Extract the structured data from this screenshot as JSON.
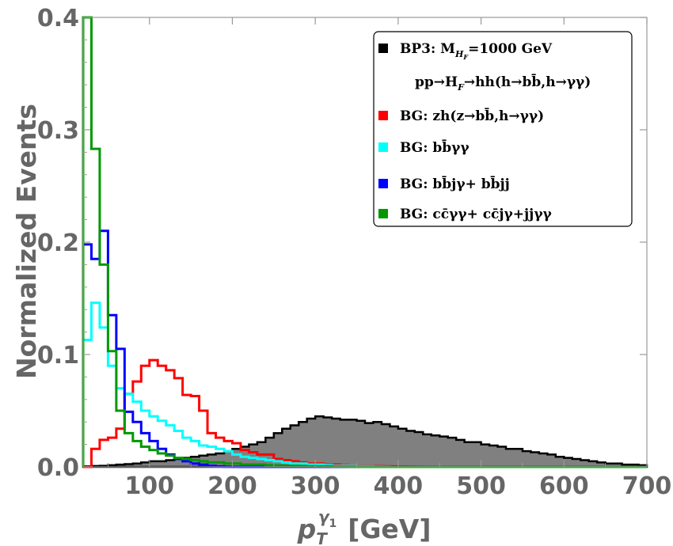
{
  "chart_data": {
    "type": "histogram",
    "ylabel": "Normalized Events",
    "xlabel": {
      "symbol": "p",
      "sub": "T",
      "sup": "γ",
      "sup_sub": "1",
      "unit": "[GeV]"
    },
    "xlim": [
      20,
      700
    ],
    "ylim": [
      0,
      0.4
    ],
    "bin_width": 10,
    "xticks": [
      "100",
      "200",
      "300",
      "400",
      "500",
      "600",
      "700"
    ],
    "xtick_values": [
      100,
      200,
      300,
      400,
      500,
      600,
      700
    ],
    "yticks": [
      "0.0",
      "0.1",
      "0.2",
      "0.3",
      "0.4"
    ],
    "ytick_values": [
      0,
      0.1,
      0.2,
      0.3,
      0.4
    ],
    "legend": {
      "position": "top-right",
      "entries": [
        {
          "key": "bp3",
          "line1": "BP3: M",
          "line1_sub": "H",
          "line1_subsub": "F",
          "line1_tail": "=1000 GeV",
          "line2": "pp→H",
          "line2_sub": "F",
          "line2_tail": "→hh(h→bb̄,h→γγ)"
        },
        {
          "key": "zh",
          "label": "BG: zh(z→bb̄,h→γγ)"
        },
        {
          "key": "bbyy",
          "label": "BG: bb̄γγ"
        },
        {
          "key": "bbjy",
          "label": "BG: bb̄jγ+ bb̄jj"
        },
        {
          "key": "ccyy",
          "label": "BG: cc̄γγ+ cc̄jγ+jjγγ"
        }
      ]
    },
    "series": [
      {
        "key": "bp3",
        "name": "BP3: M_HF=1000 GeV",
        "color": "#000000",
        "fill": "#808080",
        "filled": true,
        "x_start": 20,
        "values": [
          0.0005,
          0.0008,
          0.001,
          0.0015,
          0.002,
          0.0025,
          0.003,
          0.004,
          0.005,
          0.005,
          0.006,
          0.007,
          0.008,
          0.009,
          0.01,
          0.011,
          0.012,
          0.014,
          0.016,
          0.018,
          0.02,
          0.022,
          0.026,
          0.03,
          0.034,
          0.037,
          0.04,
          0.043,
          0.045,
          0.044,
          0.043,
          0.042,
          0.042,
          0.041,
          0.039,
          0.04,
          0.038,
          0.036,
          0.034,
          0.032,
          0.031,
          0.029,
          0.028,
          0.027,
          0.026,
          0.024,
          0.022,
          0.022,
          0.02,
          0.019,
          0.018,
          0.016,
          0.016,
          0.014,
          0.013,
          0.012,
          0.011,
          0.009,
          0.008,
          0.007,
          0.006,
          0.005,
          0.004,
          0.003,
          0.003,
          0.002,
          0.002,
          0.0015
        ]
      },
      {
        "key": "zh",
        "name": "BG: zh(z→bb̄,h→γγ)",
        "color": "#ff0000",
        "filled": false,
        "x_start": 20,
        "values": [
          0.0,
          0.016,
          0.024,
          0.026,
          0.034,
          0.065,
          0.076,
          0.09,
          0.095,
          0.09,
          0.086,
          0.079,
          0.064,
          0.063,
          0.05,
          0.03,
          0.026,
          0.023,
          0.021,
          0.015,
          0.013,
          0.011,
          0.011,
          0.007,
          0.006,
          0.005,
          0.004,
          0.003,
          0.003,
          0.002,
          0.002,
          0.0015,
          0.001,
          0.001,
          0.0008,
          0.0006,
          0.0005,
          0.0004,
          0.0003,
          0.0002,
          0.0001
        ]
      },
      {
        "key": "bbyy",
        "name": "BG: bb̄γγ",
        "color": "#00ffff",
        "filled": false,
        "x_start": 20,
        "values": [
          0.113,
          0.146,
          0.124,
          0.09,
          0.07,
          0.065,
          0.058,
          0.05,
          0.045,
          0.041,
          0.037,
          0.032,
          0.026,
          0.023,
          0.019,
          0.018,
          0.016,
          0.014,
          0.011,
          0.009,
          0.008,
          0.007,
          0.006,
          0.005,
          0.004,
          0.003,
          0.003,
          0.002,
          0.002,
          0.0015,
          0.001,
          0.001,
          0.0008,
          0.0006,
          0.0005,
          0.0003,
          0.0002
        ]
      },
      {
        "key": "bbjy",
        "name": "BG: bb̄jγ+ bb̄jj",
        "color": "#0000ff",
        "filled": false,
        "x_start": 20,
        "values": [
          0.198,
          0.185,
          0.21,
          0.135,
          0.105,
          0.049,
          0.04,
          0.03,
          0.023,
          0.016,
          0.011,
          0.007,
          0.005,
          0.003,
          0.002,
          0.001,
          0.0005,
          0.0002,
          0.0001
        ]
      },
      {
        "key": "ccyy",
        "name": "BG: cc̄γγ+ cc̄jγ+jjγγ",
        "color": "#009900",
        "filled": false,
        "x_start": 20,
        "values": [
          0.4,
          0.283,
          0.18,
          0.103,
          0.05,
          0.03,
          0.023,
          0.018,
          0.015,
          0.012,
          0.01,
          0.008,
          0.007,
          0.006,
          0.005,
          0.004,
          0.004,
          0.003,
          0.003,
          0.002,
          0.002,
          0.002,
          0.0015,
          0.0012,
          0.001,
          0.001,
          0.0008,
          0.0006,
          0.0005,
          0.0004,
          0.0003,
          0.0002,
          0.0001
        ]
      }
    ]
  }
}
